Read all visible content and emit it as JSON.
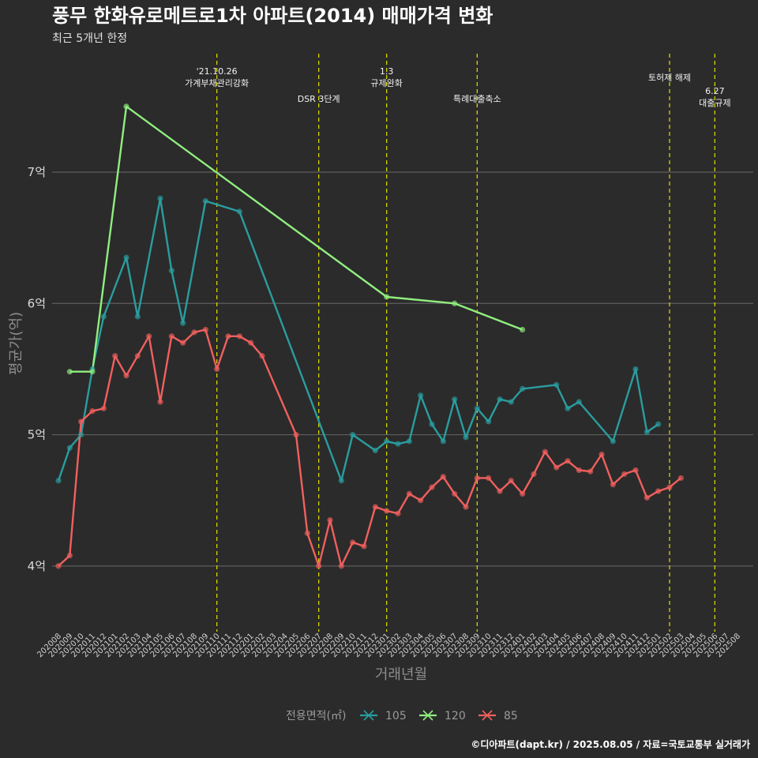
{
  "page": {
    "title": "풍무 한화유로메트로1차 아파트(2014) 매매가격 변화",
    "subtitle": "최근 5개년 한정",
    "caption": "©디아파트(dapt.kr) / 2025.08.05 / 자료=국토교통부 실거래가"
  },
  "chart_data": {
    "type": "line",
    "xlabel": "거래년월",
    "ylabel": "평균가(억)",
    "ylim": [
      3.5,
      7.95
    ],
    "y_ticks": [
      {
        "value": 4,
        "label": "4억"
      },
      {
        "value": 5,
        "label": "5억"
      },
      {
        "value": 6,
        "label": "6억"
      },
      {
        "value": 7,
        "label": "7억"
      }
    ],
    "grid": true,
    "colors": {
      "105": "#2a9d9f",
      "120": "#90ee7e",
      "85": "#f0605e",
      "vline": "#d4d400"
    },
    "categories": [
      "202008",
      "202009",
      "202010",
      "202011",
      "202012",
      "202101",
      "202102",
      "202103",
      "202104",
      "202105",
      "202106",
      "202107",
      "202108",
      "202109",
      "202110",
      "202111",
      "202112",
      "202201",
      "202202",
      "202203",
      "202204",
      "202205",
      "202206",
      "202207",
      "202208",
      "202209",
      "202210",
      "202211",
      "202212",
      "202301",
      "202302",
      "202303",
      "202304",
      "202305",
      "202306",
      "202307",
      "202308",
      "202309",
      "202310",
      "202311",
      "202312",
      "202401",
      "202402",
      "202403",
      "202404",
      "202405",
      "202406",
      "202407",
      "202408",
      "202409",
      "202410",
      "202411",
      "202412",
      "202501",
      "202502",
      "202503",
      "202504",
      "202505",
      "202506",
      "202507",
      "202508"
    ],
    "legend": {
      "title": "전용면적(㎡)",
      "position": "bottom",
      "items": [
        "105",
        "120",
        "85"
      ]
    },
    "series": [
      {
        "name": "105",
        "values": [
          [
            0,
            4.65
          ],
          [
            1,
            4.9
          ],
          [
            2,
            5.0
          ],
          [
            3,
            5.5
          ],
          [
            4,
            5.9
          ],
          [
            6,
            6.35
          ],
          [
            7,
            5.9
          ],
          [
            9,
            6.8
          ],
          [
            10,
            6.25
          ],
          [
            11,
            5.85
          ],
          [
            13,
            6.78
          ],
          [
            16,
            6.7
          ],
          [
            25,
            4.65
          ],
          [
            26,
            5.0
          ],
          [
            28,
            4.88
          ],
          [
            29,
            4.95
          ],
          [
            30,
            4.93
          ],
          [
            31,
            4.95
          ],
          [
            32,
            5.3
          ],
          [
            33,
            5.08
          ],
          [
            34,
            4.95
          ],
          [
            35,
            5.27
          ],
          [
            36,
            4.98
          ],
          [
            37,
            5.2
          ],
          [
            38,
            5.1
          ],
          [
            39,
            5.27
          ],
          [
            40,
            5.25
          ],
          [
            41,
            5.35
          ],
          [
            44,
            5.38
          ],
          [
            45,
            5.2
          ],
          [
            46,
            5.25
          ],
          [
            49,
            4.95
          ],
          [
            51,
            5.5
          ],
          [
            52,
            5.02
          ],
          [
            53,
            5.08
          ]
        ]
      },
      {
        "name": "120",
        "values": [
          [
            1,
            5.48
          ],
          [
            3,
            5.48
          ],
          [
            6,
            7.5
          ],
          [
            29,
            6.05
          ],
          [
            35,
            6.0
          ],
          [
            41,
            5.8
          ]
        ]
      },
      {
        "name": "85",
        "values": [
          [
            0,
            4.0
          ],
          [
            1,
            4.08
          ],
          [
            2,
            5.1
          ],
          [
            3,
            5.18
          ],
          [
            4,
            5.2
          ],
          [
            5,
            5.6
          ],
          [
            6,
            5.45
          ],
          [
            7,
            5.6
          ],
          [
            8,
            5.75
          ],
          [
            9,
            5.25
          ],
          [
            10,
            5.75
          ],
          [
            11,
            5.7
          ],
          [
            12,
            5.78
          ],
          [
            13,
            5.8
          ],
          [
            14,
            5.5
          ],
          [
            15,
            5.75
          ],
          [
            16,
            5.75
          ],
          [
            17,
            5.7
          ],
          [
            18,
            5.6
          ],
          [
            21,
            5.0
          ],
          [
            22,
            4.25
          ],
          [
            23,
            4.0
          ],
          [
            24,
            4.35
          ],
          [
            25,
            4.0
          ],
          [
            26,
            4.18
          ],
          [
            27,
            4.15
          ],
          [
            28,
            4.45
          ],
          [
            29,
            4.42
          ],
          [
            30,
            4.4
          ],
          [
            31,
            4.55
          ],
          [
            32,
            4.5
          ],
          [
            33,
            4.6
          ],
          [
            34,
            4.68
          ],
          [
            35,
            4.55
          ],
          [
            36,
            4.45
          ],
          [
            37,
            4.67
          ],
          [
            38,
            4.67
          ],
          [
            39,
            4.57
          ],
          [
            40,
            4.65
          ],
          [
            41,
            4.55
          ],
          [
            42,
            4.7
          ],
          [
            43,
            4.87
          ],
          [
            44,
            4.75
          ],
          [
            45,
            4.8
          ],
          [
            46,
            4.73
          ],
          [
            47,
            4.72
          ],
          [
            48,
            4.85
          ],
          [
            49,
            4.62
          ],
          [
            50,
            4.7
          ],
          [
            51,
            4.73
          ],
          [
            52,
            4.52
          ],
          [
            53,
            4.57
          ],
          [
            54,
            4.6
          ],
          [
            55,
            4.67
          ]
        ]
      }
    ],
    "annotations": [
      {
        "label": "'21.10.26\n가계부채관리강화",
        "x": 14
      },
      {
        "label": "DSR 3단계",
        "x": 23
      },
      {
        "label": "1.3\n규제완화",
        "x": 29
      },
      {
        "label": "특례대출축소",
        "x": 37
      },
      {
        "label": "토허제 해제",
        "x": 54
      },
      {
        "label": "6.27\n대출규제",
        "x": 58
      }
    ]
  }
}
